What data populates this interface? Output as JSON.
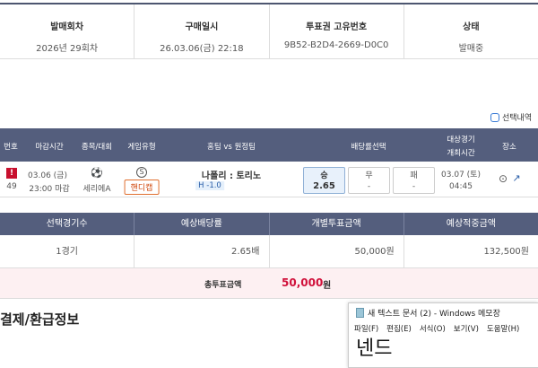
{
  "ticket_info": {
    "headers": [
      "발매회차",
      "구매일시",
      "투표권 고유번호",
      "상태"
    ],
    "values": [
      "2026년 29회차",
      "26.03.06(금) 22:18",
      "9B52-B2D4-2669-D0C0",
      "발매중"
    ]
  },
  "selection_toggle": "선택내역",
  "match_table": {
    "headers": {
      "no": "번호",
      "deadline": "마감시간",
      "sport": "종목/대회",
      "game_type": "게임유형",
      "teams": "홈팀 vs 원정팀",
      "odds": "배당률선택",
      "match_time_1": "대상경기",
      "match_time_2": "개최시간",
      "venue": "장소"
    },
    "row": {
      "no": "49",
      "deadline_date": "03.06 (금)",
      "deadline_time": "23:00 마감",
      "league": "세리에A",
      "game_type_icon": "S",
      "game_type": "핸디캡",
      "teams": "나폴리 : 토리노",
      "handicap": "H -1.0",
      "odds": [
        {
          "label": "승",
          "value": "2.65",
          "selected": true
        },
        {
          "label": "무",
          "value": "-",
          "selected": false
        },
        {
          "label": "패",
          "value": "-",
          "selected": false
        }
      ],
      "match_date": "03.07 (토)",
      "match_time": "04:45"
    }
  },
  "summary": {
    "headers": [
      "선택경기수",
      "예상배당률",
      "개별투표금액",
      "예상적중금액"
    ],
    "values": [
      "1경기",
      "2.65배",
      "50,000원",
      "132,500원"
    ],
    "total_label": "총투표금액",
    "total_amount": "50,000",
    "total_unit": "원"
  },
  "section_title": "결제/환급정보",
  "notepad": {
    "title": "새 텍스트 문서 (2) - Windows 메모장",
    "menu": [
      "파일(F)",
      "편집(E)",
      "서식(O)",
      "보기(V)",
      "도움말(H)"
    ],
    "content": "넨드"
  },
  "colors": {
    "header_bg": "#545e7d",
    "accent_red": "#d0103a",
    "total_bg": "#fdf0f2"
  }
}
